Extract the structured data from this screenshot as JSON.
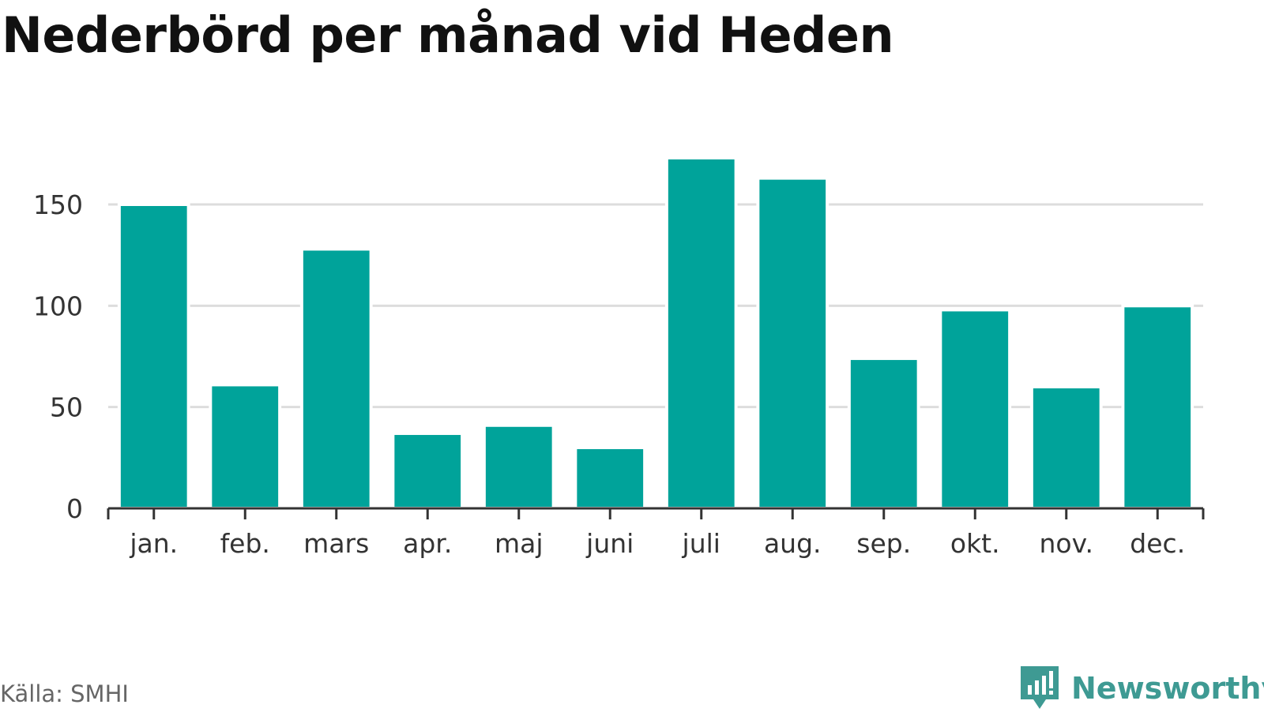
{
  "title": "Nederbörd per månad vid Heden",
  "source": "Källa: SMHI",
  "brand": {
    "name": "Newsworthy",
    "icon": "newsworthy-logo-icon"
  },
  "colors": {
    "bar": "#00a39a",
    "grid": "#dddddd",
    "axis": "#333333",
    "brand": "#3e9a93"
  },
  "chart_data": {
    "type": "bar",
    "title": "Nederbörd per månad vid Heden",
    "xlabel": "",
    "ylabel": "",
    "categories": [
      "jan.",
      "feb.",
      "mars",
      "apr.",
      "maj",
      "juni",
      "juli",
      "aug.",
      "sep.",
      "okt.",
      "nov.",
      "dec."
    ],
    "values": [
      150,
      61,
      128,
      37,
      41,
      30,
      173,
      163,
      74,
      98,
      60,
      100
    ],
    "ylim": [
      0,
      180
    ],
    "yticks": [
      0,
      50,
      100,
      150
    ],
    "grid": true,
    "legend": "none"
  }
}
